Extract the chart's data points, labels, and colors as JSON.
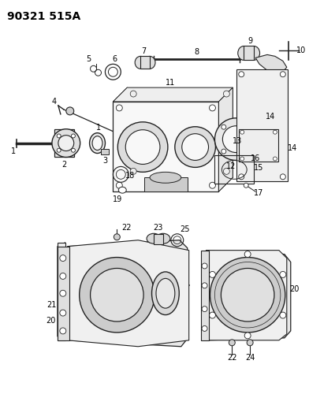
{
  "title": "90321 515A",
  "bg_color": "#ffffff",
  "line_color": "#222222",
  "label_color": "#000000",
  "title_fontsize": 10,
  "label_fontsize": 7,
  "figsize": [
    3.92,
    5.33
  ],
  "dpi": 100
}
